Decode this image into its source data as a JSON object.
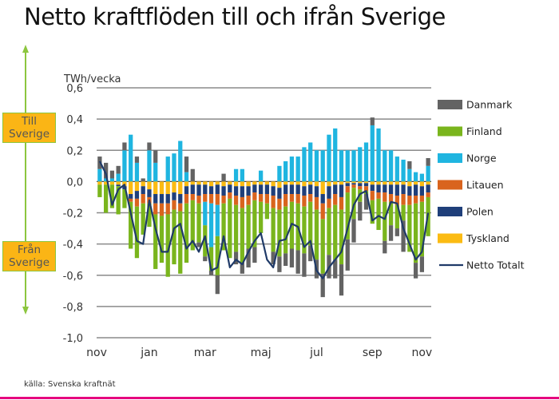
{
  "title": "Netto kraftflöden till och ifrån Sverige",
  "annotations": {
    "to_sweden": "Till Sverige",
    "from_sweden": "Från Sverige"
  },
  "source": "källa: Svenska kraftnät",
  "chart_data": {
    "type": "bar",
    "stacked": true,
    "ylabel": "TWh/vecka",
    "ylim": [
      -1.0,
      0.6
    ],
    "yticks": [
      "0,6",
      "0,4",
      "0,2",
      "0,0",
      "-0,2",
      "-0,4",
      "-0,6",
      "-0,8",
      "-1,0"
    ],
    "ytick_values": [
      0.6,
      0.4,
      0.2,
      0.0,
      -0.2,
      -0.4,
      -0.6,
      -0.8,
      -1.0
    ],
    "month_labels": [
      "nov",
      "jan",
      "mar",
      "maj",
      "jul",
      "sep",
      "nov"
    ],
    "month_label_week_index": [
      0,
      8,
      17,
      26,
      35,
      44,
      52
    ],
    "grid": true,
    "legend_placement": "right",
    "series": [
      {
        "name": "Danmark",
        "color": "#636363",
        "values": [
          0.08,
          0.1,
          0.05,
          0.05,
          0.05,
          0.0,
          0.04,
          0.02,
          0.05,
          0.08,
          0.0,
          0.0,
          0.0,
          0.0,
          0.1,
          0.08,
          -0.03,
          -0.03,
          -0.03,
          -0.12,
          0.05,
          0.0,
          -0.08,
          -0.07,
          -0.12,
          -0.1,
          0.0,
          0.0,
          -0.08,
          -0.1,
          -0.08,
          -0.12,
          -0.15,
          -0.15,
          -0.1,
          -0.12,
          -0.15,
          -0.15,
          -0.12,
          -0.2,
          -0.2,
          -0.15,
          -0.12,
          -0.1,
          0.05,
          0.0,
          -0.08,
          -0.1,
          -0.05,
          -0.2,
          0.05,
          -0.1,
          -0.1,
          0.05
        ]
      },
      {
        "name": "Finland",
        "color": "#7ab51d",
        "values": [
          -0.08,
          -0.18,
          -0.15,
          -0.18,
          -0.12,
          -0.3,
          -0.33,
          -0.2,
          -0.15,
          -0.35,
          -0.3,
          -0.4,
          -0.35,
          -0.4,
          -0.38,
          -0.32,
          -0.25,
          -0.2,
          -0.15,
          -0.25,
          -0.3,
          -0.38,
          -0.3,
          -0.35,
          -0.28,
          -0.3,
          -0.2,
          -0.1,
          -0.28,
          -0.3,
          -0.3,
          -0.3,
          -0.3,
          -0.3,
          -0.28,
          -0.32,
          -0.35,
          -0.3,
          -0.35,
          -0.35,
          -0.3,
          -0.2,
          -0.08,
          -0.02,
          -0.15,
          -0.2,
          -0.25,
          -0.15,
          -0.15,
          -0.1,
          -0.3,
          -0.38,
          -0.35,
          -0.25
        ]
      },
      {
        "name": "Norge",
        "color": "#1fb5e0",
        "values": [
          0.08,
          0.02,
          0.02,
          0.05,
          0.2,
          0.3,
          0.12,
          0.0,
          0.2,
          0.12,
          0.0,
          0.16,
          0.18,
          0.26,
          0.06,
          0.0,
          0.0,
          -0.15,
          -0.28,
          -0.2,
          0.0,
          0.0,
          0.08,
          0.08,
          0.0,
          0.0,
          0.07,
          0.0,
          0.0,
          0.1,
          0.13,
          0.16,
          0.16,
          0.22,
          0.25,
          0.2,
          0.2,
          0.3,
          0.34,
          0.2,
          0.2,
          0.2,
          0.22,
          0.25,
          0.36,
          0.34,
          0.2,
          0.2,
          0.16,
          0.14,
          0.08,
          0.06,
          0.05,
          0.1
        ]
      },
      {
        "name": "Litauen",
        "color": "#d9641e",
        "values": [
          0.0,
          0.0,
          0.0,
          0.0,
          0.0,
          -0.02,
          -0.05,
          -0.06,
          -0.04,
          -0.07,
          -0.08,
          -0.07,
          -0.06,
          -0.05,
          -0.06,
          -0.04,
          -0.05,
          -0.05,
          -0.06,
          -0.07,
          -0.05,
          -0.04,
          -0.06,
          -0.07,
          -0.06,
          -0.05,
          -0.05,
          -0.06,
          -0.08,
          -0.07,
          -0.08,
          -0.05,
          -0.06,
          -0.07,
          -0.05,
          -0.08,
          -0.1,
          -0.06,
          -0.07,
          -0.08,
          -0.04,
          -0.02,
          -0.02,
          -0.03,
          -0.06,
          -0.04,
          -0.06,
          -0.05,
          -0.06,
          -0.07,
          -0.06,
          -0.05,
          -0.04,
          -0.03
        ]
      },
      {
        "name": "Polen",
        "color": "#1f3f7a",
        "values": [
          0.0,
          0.0,
          0.0,
          -0.01,
          -0.02,
          -0.03,
          -0.05,
          -0.05,
          -0.05,
          -0.06,
          -0.06,
          -0.06,
          -0.05,
          -0.06,
          -0.05,
          -0.06,
          -0.07,
          -0.06,
          -0.05,
          -0.06,
          -0.06,
          -0.05,
          -0.06,
          -0.07,
          -0.06,
          -0.05,
          -0.06,
          -0.06,
          -0.06,
          -0.07,
          -0.06,
          -0.06,
          -0.06,
          -0.06,
          -0.06,
          -0.07,
          -0.06,
          -0.08,
          -0.06,
          -0.08,
          -0.02,
          -0.01,
          -0.02,
          -0.02,
          -0.04,
          -0.05,
          -0.05,
          -0.06,
          -0.07,
          -0.06,
          -0.06,
          -0.07,
          -0.06,
          -0.05
        ]
      },
      {
        "name": "Tyskland",
        "color": "#fbbb13",
        "values": [
          -0.02,
          -0.02,
          -0.02,
          -0.02,
          -0.03,
          -0.08,
          -0.06,
          -0.03,
          -0.05,
          -0.08,
          -0.08,
          -0.08,
          -0.07,
          -0.08,
          -0.03,
          -0.02,
          -0.02,
          -0.02,
          -0.03,
          -0.02,
          -0.03,
          -0.02,
          -0.03,
          -0.03,
          -0.03,
          -0.02,
          -0.02,
          -0.02,
          -0.03,
          -0.04,
          -0.02,
          -0.02,
          -0.02,
          -0.03,
          -0.02,
          -0.03,
          -0.08,
          -0.03,
          -0.02,
          -0.02,
          -0.01,
          -0.01,
          -0.01,
          -0.01,
          -0.02,
          -0.02,
          -0.02,
          -0.02,
          -0.02,
          -0.02,
          -0.03,
          -0.02,
          -0.03,
          -0.02
        ]
      }
    ],
    "net": {
      "name": "Netto Totalt",
      "color": "#1f3a68",
      "values": [
        0.13,
        0.05,
        -0.15,
        -0.05,
        -0.02,
        -0.2,
        -0.38,
        -0.4,
        -0.12,
        -0.3,
        -0.45,
        -0.45,
        -0.3,
        -0.27,
        -0.43,
        -0.38,
        -0.45,
        -0.35,
        -0.57,
        -0.55,
        -0.35,
        -0.55,
        -0.5,
        -0.53,
        -0.45,
        -0.38,
        -0.33,
        -0.5,
        -0.55,
        -0.38,
        -0.37,
        -0.27,
        -0.29,
        -0.42,
        -0.38,
        -0.57,
        -0.62,
        -0.55,
        -0.5,
        -0.45,
        -0.3,
        -0.15,
        -0.08,
        -0.06,
        -0.25,
        -0.22,
        -0.24,
        -0.13,
        -0.14,
        -0.3,
        -0.4,
        -0.5,
        -0.45,
        -0.2
      ]
    },
    "legend_order": [
      "Danmark",
      "Finland",
      "Norge",
      "Litauen",
      "Polen",
      "Tyskland",
      "Netto Totalt"
    ]
  }
}
